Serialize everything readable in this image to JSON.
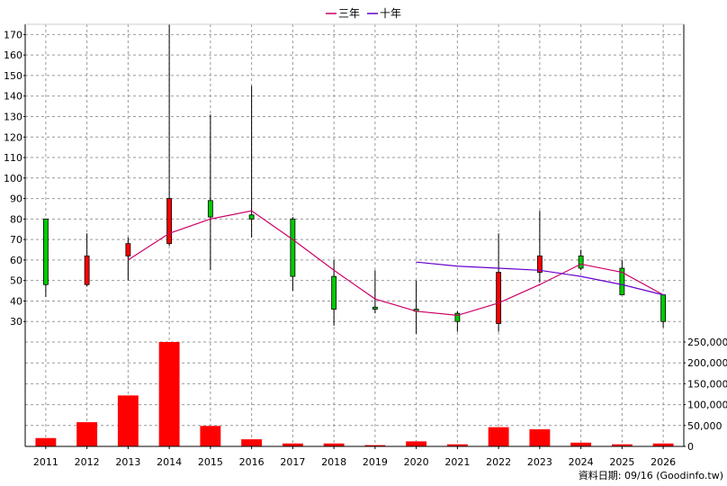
{
  "chart_data": {
    "type": "candlestick",
    "years": [
      "2011",
      "2012",
      "2013",
      "2014",
      "2015",
      "2016",
      "2017",
      "2018",
      "2019",
      "2020",
      "2021",
      "2022",
      "2023",
      "2024",
      "2025",
      "2026"
    ],
    "legend": [
      {
        "label": "三年",
        "color": "#cc0066"
      },
      {
        "label": "十年",
        "color": "#6600cc"
      }
    ],
    "price_axis": {
      "ylim": [
        20,
        175
      ],
      "ticks": [
        30,
        40,
        50,
        60,
        70,
        80,
        90,
        100,
        110,
        120,
        130,
        140,
        150,
        160,
        170
      ]
    },
    "volume_axis": {
      "ylim": [
        0,
        250000
      ],
      "ticks": [
        0,
        50000,
        100000,
        150000,
        200000,
        250000
      ],
      "tick_labels": [
        "0",
        "50,000",
        "100,000",
        "150,000",
        "200,000",
        "250,000"
      ]
    },
    "candles": [
      {
        "year": "2011",
        "open": 80,
        "close": 48,
        "high": 80,
        "low": 42
      },
      {
        "year": "2012",
        "open": 48,
        "close": 62,
        "high": 73,
        "low": 47
      },
      {
        "year": "2013",
        "open": 62,
        "close": 68,
        "high": 71,
        "low": 50
      },
      {
        "year": "2014",
        "open": 68,
        "close": 90,
        "high": 175,
        "low": 67
      },
      {
        "year": "2015",
        "open": 89,
        "close": 81,
        "high": 131,
        "low": 55
      },
      {
        "year": "2016",
        "open": 82,
        "close": 80,
        "high": 145,
        "low": 71
      },
      {
        "year": "2017",
        "open": 80,
        "close": 52,
        "high": 81,
        "low": 45
      },
      {
        "year": "2018",
        "open": 52,
        "close": 36,
        "high": 60,
        "low": 28
      },
      {
        "year": "2019",
        "open": 37,
        "close": 36,
        "high": 55,
        "low": 34
      },
      {
        "year": "2020",
        "open": 36,
        "close": 35,
        "high": 50,
        "low": 24
      },
      {
        "year": "2021",
        "open": 34,
        "close": 30,
        "high": 35,
        "low": 25
      },
      {
        "year": "2022",
        "open": 29,
        "close": 54,
        "high": 73,
        "low": 25
      },
      {
        "year": "2023",
        "open": 54,
        "close": 62,
        "high": 84,
        "low": 49
      },
      {
        "year": "2024",
        "open": 62,
        "close": 56,
        "high": 65,
        "low": 55
      },
      {
        "year": "2025",
        "open": 56,
        "close": 43,
        "high": 60,
        "low": 43
      },
      {
        "year": "2026",
        "open": 43,
        "close": 30,
        "high": 43,
        "low": 27
      }
    ],
    "volume": [
      20000,
      58000,
      122000,
      250000,
      49000,
      17000,
      7000,
      7000,
      3000,
      12000,
      5000,
      46000,
      41000,
      9000,
      5000,
      7000
    ],
    "ma3": [
      {
        "year": "2013",
        "value": 60
      },
      {
        "year": "2014",
        "value": 73
      },
      {
        "year": "2015",
        "value": 80
      },
      {
        "year": "2016",
        "value": 84
      },
      {
        "year": "2017",
        "value": 70
      },
      {
        "year": "2018",
        "value": 55
      },
      {
        "year": "2019",
        "value": 41
      },
      {
        "year": "2020",
        "value": 35
      },
      {
        "year": "2021",
        "value": 33
      },
      {
        "year": "2022",
        "value": 39
      },
      {
        "year": "2023",
        "value": 48
      },
      {
        "year": "2024",
        "value": 58
      },
      {
        "year": "2025",
        "value": 54
      },
      {
        "year": "2026",
        "value": 43
      }
    ],
    "ma10": [
      {
        "year": "2020",
        "value": 59
      },
      {
        "year": "2021",
        "value": 57
      },
      {
        "year": "2022",
        "value": 56
      },
      {
        "year": "2023",
        "value": 55
      },
      {
        "year": "2024",
        "value": 52
      },
      {
        "year": "2025",
        "value": 48
      },
      {
        "year": "2026",
        "value": 43
      }
    ],
    "colors": {
      "up_candle": "#ff0000",
      "down_candle": "#00cc00",
      "volume_bar": "#ff0000",
      "grid": "#999999",
      "frame": "#000000"
    },
    "grid": true,
    "legend_position": "top-center",
    "source_text": "資料日期: 09/16  (Goodinfo.tw)"
  }
}
